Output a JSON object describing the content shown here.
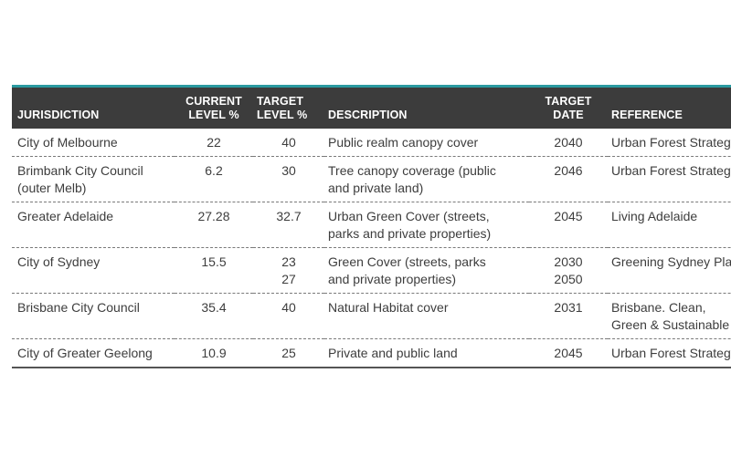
{
  "table": {
    "headers": {
      "jurisdiction": "JURISDICTION",
      "current_level_line1": "CURRENT",
      "current_level_line2": "LEVEL %",
      "target_level_line1": "TARGET",
      "target_level_line2": "LEVEL %",
      "description": "DESCRIPTION",
      "target_date_line1": "TARGET",
      "target_date_line2": "DATE",
      "reference": "REFERENCE"
    },
    "rows": [
      {
        "jurisdiction_line1": "City of Melbourne",
        "jurisdiction_line2": "",
        "current": "22",
        "target_line1": "40",
        "target_line2": "",
        "description_line1": "Public realm canopy cover",
        "description_line2": "",
        "date_line1": "2040",
        "date_line2": "",
        "reference_line1": "Urban Forest Strategy",
        "reference_line2": ""
      },
      {
        "jurisdiction_line1": "Brimbank City Council",
        "jurisdiction_line2": "(outer Melb)",
        "current": "6.2",
        "target_line1": "30",
        "target_line2": "",
        "description_line1": "Tree canopy coverage (public",
        "description_line2": "and private land)",
        "date_line1": "2046",
        "date_line2": "",
        "reference_line1": "Urban Forest Strategy",
        "reference_line2": ""
      },
      {
        "jurisdiction_line1": "Greater Adelaide",
        "jurisdiction_line2": "",
        "current": "27.28",
        "target_line1": "32.7",
        "target_line2": "",
        "description_line1": "Urban Green Cover (streets,",
        "description_line2": "parks and private properties)",
        "date_line1": "2045",
        "date_line2": "",
        "reference_line1": "Living Adelaide",
        "reference_line2": ""
      },
      {
        "jurisdiction_line1": "City of Sydney",
        "jurisdiction_line2": "",
        "current": "15.5",
        "target_line1": "23",
        "target_line2": "27",
        "description_line1": "Green Cover (streets, parks",
        "description_line2": "and private properties)",
        "date_line1": "2030",
        "date_line2": "2050",
        "reference_line1": "Greening Sydney Plan",
        "reference_line2": ""
      },
      {
        "jurisdiction_line1": "Brisbane City Council",
        "jurisdiction_line2": "",
        "current": "35.4",
        "target_line1": "40",
        "target_line2": "",
        "description_line1": "Natural Habitat cover",
        "description_line2": "",
        "date_line1": "2031",
        "date_line2": "",
        "reference_line1": "Brisbane. Clean,",
        "reference_line2": "Green & Sustainable"
      },
      {
        "jurisdiction_line1": "City of Greater Geelong",
        "jurisdiction_line2": "",
        "current": "10.9",
        "target_line1": "25",
        "target_line2": "",
        "description_line1": "Private and public land",
        "description_line2": "",
        "date_line1": "2045",
        "date_line2": "",
        "reference_line1": "Urban Forest Strategy",
        "reference_line2": ""
      }
    ]
  },
  "colors": {
    "header_background": "#3c3c3c",
    "header_accent": "#2a9aa0",
    "header_text": "#ffffff",
    "body_text": "#3d3d3d"
  }
}
